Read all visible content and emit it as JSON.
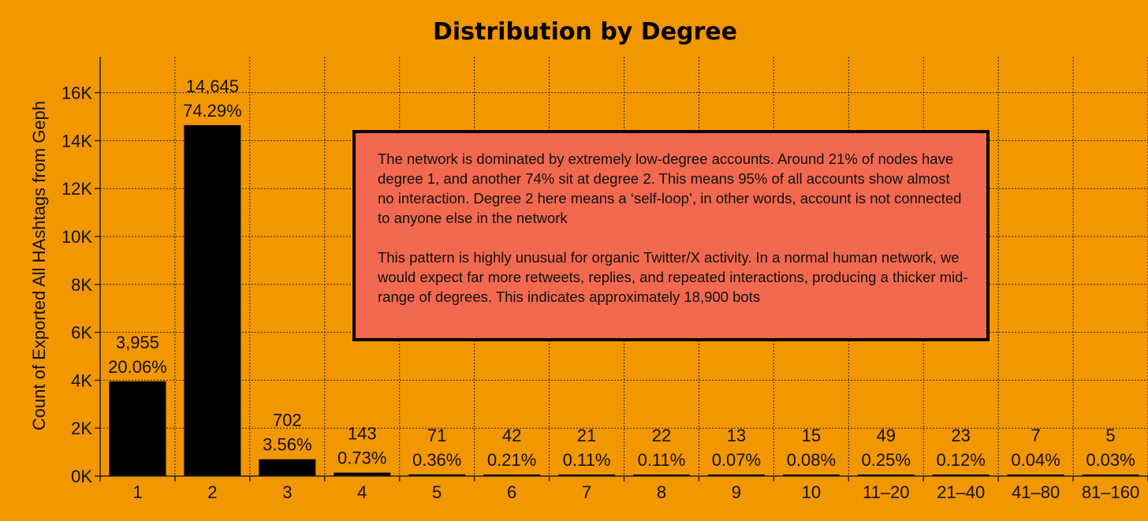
{
  "chart_data": {
    "type": "bar",
    "title": "Distribution by Degree",
    "xlabel": "",
    "ylabel": "Count of Exported All HAshtags from Geph",
    "categories": [
      "1",
      "2",
      "3",
      "4",
      "5",
      "6",
      "7",
      "8",
      "9",
      "10",
      "11–20",
      "21–40",
      "41–80",
      "81–160"
    ],
    "values": [
      3955,
      14645,
      702,
      143,
      71,
      42,
      21,
      22,
      13,
      15,
      49,
      23,
      7,
      5
    ],
    "value_labels": [
      "3,955",
      "14,645",
      "702",
      "143",
      "71",
      "42",
      "21",
      "22",
      "13",
      "15",
      "49",
      "23",
      "7",
      "5"
    ],
    "percent_labels": [
      "20.06%",
      "74.29%",
      "3.56%",
      "0.73%",
      "0.36%",
      "0.21%",
      "0.11%",
      "0.11%",
      "0.07%",
      "0.08%",
      "0.25%",
      "0.12%",
      "0.04%",
      "0.03%"
    ],
    "ylim": [
      0,
      17500
    ],
    "yticks": [
      0,
      2000,
      4000,
      6000,
      8000,
      10000,
      12000,
      14000,
      16000
    ],
    "ytick_labels": [
      "0K",
      "2K",
      "4K",
      "6K",
      "8K",
      "10K",
      "12K",
      "14K",
      "16K"
    ],
    "grid": true,
    "colors": {
      "background": "#f39700",
      "bar": "#000000",
      "grid": "#222222",
      "note_bg": "#f2694f"
    }
  },
  "annotation": {
    "paragraph1": "The network is dominated by extremely low-degree accounts. Around 21% of nodes have degree 1, and another 74% sit at degree 2. This means 95% of all accounts show almost no interaction. Degree 2 here means a ‘self-loop’, in other words, account is not connected to anyone else in the network",
    "paragraph2": "This pattern is highly unusual for organic Twitter/X activity. In a normal human network, we would expect far more retweets, replies, and repeated interactions, producing a thicker mid-range of degrees. This indicates approximately 18,900 bots"
  }
}
